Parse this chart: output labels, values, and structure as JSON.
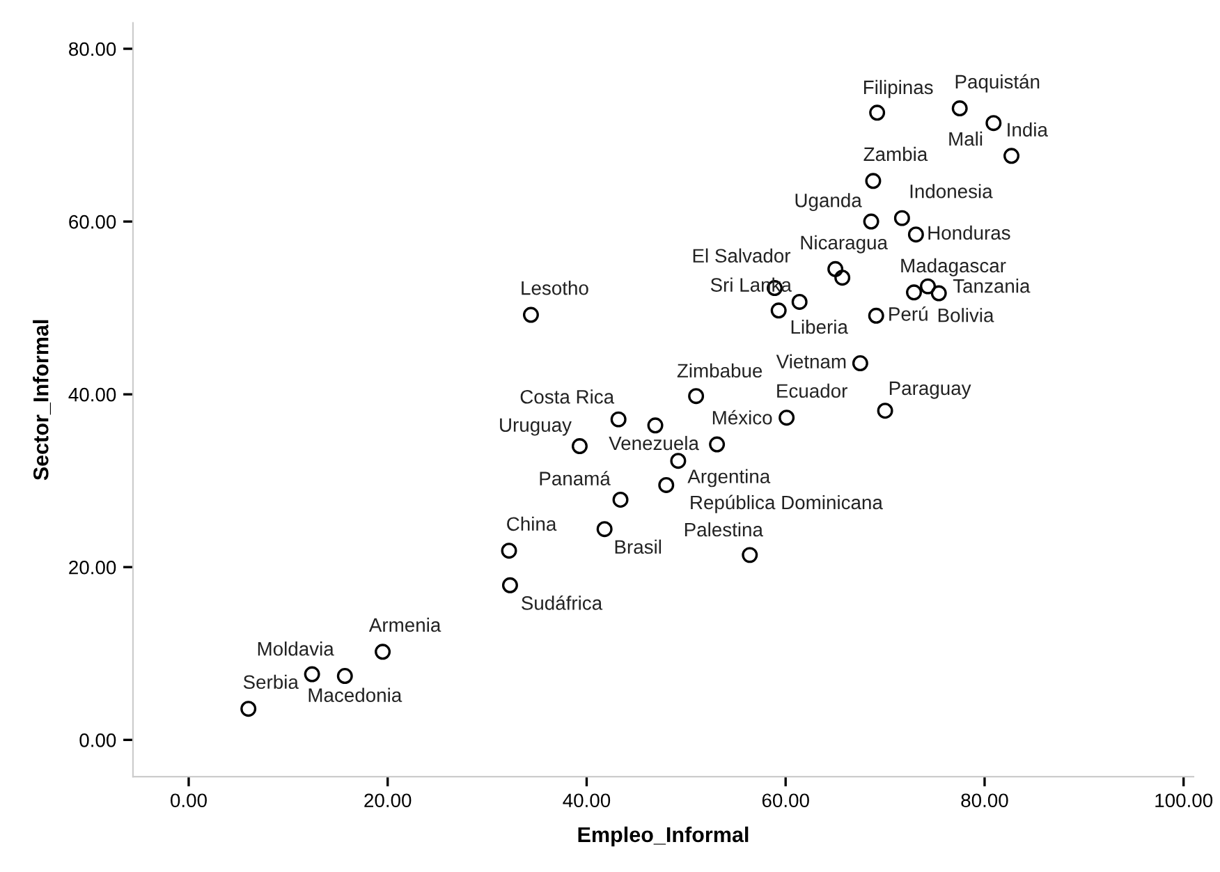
{
  "chart_data": {
    "type": "scatter",
    "xlabel": "Empleo_Informal",
    "ylabel": "Sector_Informal",
    "x": [
      6.0,
      12.4,
      15.7,
      19.5,
      32.2,
      32.3,
      43.2,
      39.3,
      46.9,
      49.2,
      48.0,
      43.4,
      41.8,
      56.4,
      53.1,
      60.1,
      51.0,
      67.5,
      70.0,
      34.4,
      69.2,
      77.5,
      80.9,
      82.7,
      68.8,
      68.6,
      71.7,
      73.1,
      72.9,
      74.3,
      75.4,
      69.1,
      65.0,
      65.7,
      58.9,
      59.3,
      61.4
    ],
    "values": [
      3.6,
      7.6,
      7.4,
      10.2,
      21.9,
      17.9,
      37.1,
      34.0,
      36.4,
      32.3,
      29.5,
      27.8,
      24.4,
      21.4,
      34.2,
      37.3,
      39.8,
      43.6,
      38.1,
      49.2,
      72.6,
      73.1,
      71.4,
      67.6,
      64.7,
      60.0,
      60.4,
      58.5,
      51.8,
      52.5,
      51.7,
      49.1,
      54.5,
      53.5,
      52.3,
      49.7,
      50.7
    ],
    "color": "#000000",
    "marker": "circle",
    "grid": false,
    "legend": false,
    "xlim": [
      -5.6,
      101
    ],
    "ylim": [
      -4.25,
      83
    ],
    "xticks": [
      {
        "value": 0,
        "label": "0.00"
      },
      {
        "value": 20,
        "label": "20.00"
      },
      {
        "value": 40,
        "label": "40.00"
      },
      {
        "value": 60,
        "label": "60.00"
      },
      {
        "value": 80,
        "label": "80.00"
      },
      {
        "value": 100,
        "label": "100.00"
      }
    ],
    "yticks": [
      {
        "value": 0,
        "label": "0.00"
      },
      {
        "value": 20,
        "label": "20.00"
      },
      {
        "value": 40,
        "label": "40.00"
      },
      {
        "value": 60,
        "label": "60.00"
      },
      {
        "value": 80,
        "label": "80.00"
      }
    ],
    "annotations": [
      {
        "text": "Serbia",
        "x": 6.0,
        "y": 3.6
      },
      {
        "text": "Moldavia",
        "x": 12.4,
        "y": 7.6
      },
      {
        "text": "Macedonia",
        "x": 15.7,
        "y": 7.4
      },
      {
        "text": "Armenia",
        "x": 19.5,
        "y": 10.2
      },
      {
        "text": "China",
        "x": 32.2,
        "y": 21.9
      },
      {
        "text": "Sudáfrica",
        "x": 32.3,
        "y": 17.9
      },
      {
        "text": "Costa Rica",
        "x": 43.2,
        "y": 37.1
      },
      {
        "text": "Uruguay",
        "x": 39.3,
        "y": 34.0
      },
      {
        "text": "Venezuela",
        "x": 46.9,
        "y": 36.4
      },
      {
        "text": "República Dominicana",
        "x": 49.2,
        "y": 32.3
      },
      {
        "text": "Argentina",
        "x": 48.0,
        "y": 29.5
      },
      {
        "text": "Panamá",
        "x": 43.4,
        "y": 27.8
      },
      {
        "text": "Brasil",
        "x": 41.8,
        "y": 24.4
      },
      {
        "text": "Palestina",
        "x": 56.4,
        "y": 21.4
      },
      {
        "text": "México",
        "x": 53.1,
        "y": 34.2
      },
      {
        "text": "Ecuador",
        "x": 60.1,
        "y": 37.3
      },
      {
        "text": "Zimbabue",
        "x": 51.0,
        "y": 39.8
      },
      {
        "text": "Vietnam",
        "x": 67.5,
        "y": 43.6
      },
      {
        "text": "Paraguay",
        "x": 70.0,
        "y": 38.1
      },
      {
        "text": "Lesotho",
        "x": 34.4,
        "y": 49.2
      },
      {
        "text": "Filipinas",
        "x": 69.2,
        "y": 72.6
      },
      {
        "text": "Paquistán",
        "x": 77.5,
        "y": 73.1
      },
      {
        "text": "India",
        "x": 80.9,
        "y": 71.4
      },
      {
        "text": "Mali",
        "x": 82.7,
        "y": 67.6
      },
      {
        "text": "Zambia",
        "x": 68.8,
        "y": 64.7
      },
      {
        "text": "Uganda",
        "x": 68.6,
        "y": 60.0
      },
      {
        "text": "Indonesia",
        "x": 71.7,
        "y": 60.4
      },
      {
        "text": "Honduras",
        "x": 73.1,
        "y": 58.5
      },
      {
        "text": "Madagascar",
        "x": 72.9,
        "y": 51.8
      },
      {
        "text": "Tanzania",
        "x": 75.4,
        "y": 51.7
      },
      {
        "text": "Bolivia",
        "x": 74.3,
        "y": 52.5
      },
      {
        "text": "Perú",
        "x": 69.1,
        "y": 49.1
      },
      {
        "text": "El Salvador",
        "x": 58.9,
        "y": 52.3
      },
      {
        "text": "Nicaragua",
        "x": 65.7,
        "y": 53.5
      },
      {
        "text": "Sri Lanka",
        "x": 61.4,
        "y": 50.7
      },
      {
        "text": "Liberia",
        "x": 59.3,
        "y": 49.7
      }
    ]
  }
}
